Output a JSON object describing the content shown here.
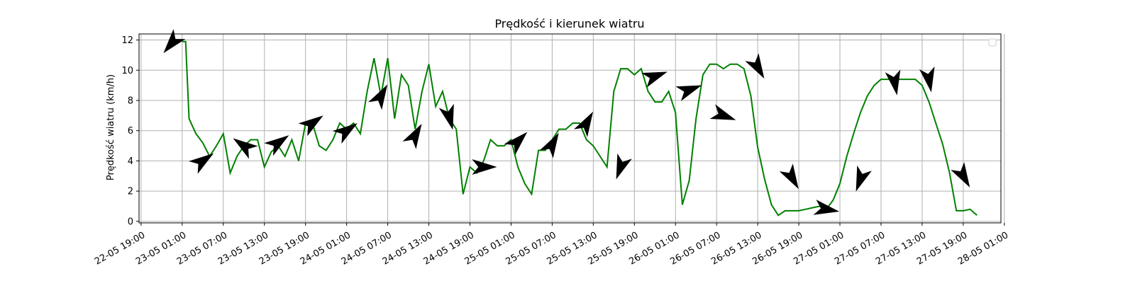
{
  "chart_data": {
    "type": "line",
    "title": "Prędkość i kierunek wiatru",
    "xlabel": "",
    "ylabel": "Prędkość wiatru (km/h)",
    "x_ticks": [
      "22-05 19:00",
      "23-05 01:00",
      "23-05 07:00",
      "23-05 13:00",
      "23-05 19:00",
      "24-05 01:00",
      "24-05 07:00",
      "24-05 13:00",
      "24-05 19:00",
      "25-05 01:00",
      "25-05 07:00",
      "25-05 13:00",
      "25-05 19:00",
      "26-05 01:00",
      "26-05 07:00",
      "26-05 13:00",
      "26-05 19:00",
      "27-05 01:00",
      "27-05 07:00",
      "27-05 13:00",
      "27-05 19:00",
      "28-05 01:00"
    ],
    "y_ticks": [
      0,
      2,
      4,
      6,
      8,
      10,
      12
    ],
    "xlim_hours": [
      -0.3,
      125.5
    ],
    "ylim": [
      -0.1,
      12.4
    ],
    "grid": true,
    "legend": "top-right (empty)",
    "line_color": "#008000",
    "series": [
      {
        "x_hours": [
          6,
          6.5,
          7,
          8,
          9,
          10,
          11,
          12,
          13,
          14,
          15,
          16,
          17,
          18,
          19,
          20,
          21,
          22,
          23,
          24,
          25,
          26,
          27,
          28,
          29,
          30,
          31,
          32,
          33,
          34,
          35,
          36,
          37,
          38,
          39,
          40,
          41,
          42,
          43,
          44,
          45,
          46,
          47,
          48,
          49,
          50,
          51,
          52,
          53,
          54,
          55,
          56,
          57,
          58,
          59,
          60,
          61,
          62,
          63,
          64,
          65,
          66,
          67,
          68,
          69,
          70,
          71,
          72,
          73,
          74,
          75,
          76,
          77,
          78,
          79,
          80,
          81,
          82,
          83,
          84,
          85,
          86,
          87,
          88,
          89,
          90,
          91,
          92,
          93,
          94,
          95,
          96,
          97,
          98,
          99,
          100,
          101,
          102,
          103,
          104,
          105,
          106,
          107,
          108,
          109,
          110,
          111,
          112,
          113,
          114,
          115,
          116,
          117,
          118,
          119,
          120,
          121,
          122
        ],
        "speed": [
          11.9,
          11.9,
          6.8,
          5.8,
          5.2,
          4.3,
          5.0,
          5.8,
          3.2,
          4.3,
          5.0,
          5.4,
          5.4,
          3.6,
          4.6,
          5.0,
          4.3,
          5.4,
          4.0,
          6.5,
          6.5,
          5.0,
          4.7,
          5.4,
          6.5,
          6.1,
          6.5,
          5.8,
          8.6,
          10.8,
          8.3,
          10.8,
          6.8,
          9.7,
          9.0,
          6.1,
          8.6,
          10.4,
          7.6,
          8.6,
          6.8,
          6.1,
          1.8,
          3.6,
          3.2,
          4.0,
          5.4,
          5.0,
          5.0,
          5.4,
          3.6,
          2.5,
          1.8,
          4.7,
          4.7,
          5.4,
          6.1,
          6.1,
          6.5,
          6.5,
          5.4,
          5.0,
          4.3,
          3.6,
          8.6,
          10.1,
          10.1,
          9.7,
          10.1,
          8.6,
          7.9,
          7.9,
          8.6,
          7.2,
          1.1,
          2.7,
          6.8,
          9.7,
          10.4,
          10.4,
          10.1,
          10.4,
          10.4,
          10.1,
          8.3,
          4.9,
          2.8,
          1.1,
          0.4,
          0.7,
          0.7,
          0.7,
          0.8,
          0.9,
          1.0,
          0.8,
          1.4,
          2.5,
          4.3,
          5.8,
          7.2,
          8.3,
          9.0,
          9.4,
          9.4,
          9.4,
          9.4,
          9.4,
          9.4,
          9.0,
          7.9,
          6.5,
          5.1,
          3.2,
          0.7,
          0.7,
          0.8,
          0.4
        ],
        "arrows": [
          {
            "x_hours": 4.5,
            "speed": 11.8,
            "dir_deg": 130
          },
          {
            "x_hours": 9,
            "speed": 4.0,
            "dir_deg": -35
          },
          {
            "x_hours": 15,
            "speed": 5.0,
            "dir_deg": -145
          },
          {
            "x_hours": 20,
            "speed": 5.2,
            "dir_deg": -35
          },
          {
            "x_hours": 25,
            "speed": 6.5,
            "dir_deg": -35
          },
          {
            "x_hours": 30,
            "speed": 6.0,
            "dir_deg": -35
          },
          {
            "x_hours": 35,
            "speed": 8.3,
            "dir_deg": -60
          },
          {
            "x_hours": 40,
            "speed": 5.7,
            "dir_deg": -60
          },
          {
            "x_hours": 45,
            "speed": 6.9,
            "dir_deg": 75
          },
          {
            "x_hours": 50,
            "speed": 3.6,
            "dir_deg": 0
          },
          {
            "x_hours": 55,
            "speed": 5.3,
            "dir_deg": -45
          },
          {
            "x_hours": 60,
            "speed": 5.1,
            "dir_deg": -60
          },
          {
            "x_hours": 65,
            "speed": 6.5,
            "dir_deg": -60
          },
          {
            "x_hours": 70,
            "speed": 3.6,
            "dir_deg": 110
          },
          {
            "x_hours": 75,
            "speed": 9.6,
            "dir_deg": -20
          },
          {
            "x_hours": 80,
            "speed": 8.7,
            "dir_deg": -20
          },
          {
            "x_hours": 85,
            "speed": 7.0,
            "dir_deg": 20
          },
          {
            "x_hours": 90,
            "speed": 10.2,
            "dir_deg": 60
          },
          {
            "x_hours": 95,
            "speed": 2.9,
            "dir_deg": 60
          },
          {
            "x_hours": 100,
            "speed": 0.8,
            "dir_deg": 10
          },
          {
            "x_hours": 105,
            "speed": 2.8,
            "dir_deg": 110
          },
          {
            "x_hours": 110,
            "speed": 9.2,
            "dir_deg": 80
          },
          {
            "x_hours": 115,
            "speed": 9.4,
            "dir_deg": 80
          },
          {
            "x_hours": 120,
            "speed": 3.0,
            "dir_deg": 60
          }
        ]
      }
    ]
  }
}
